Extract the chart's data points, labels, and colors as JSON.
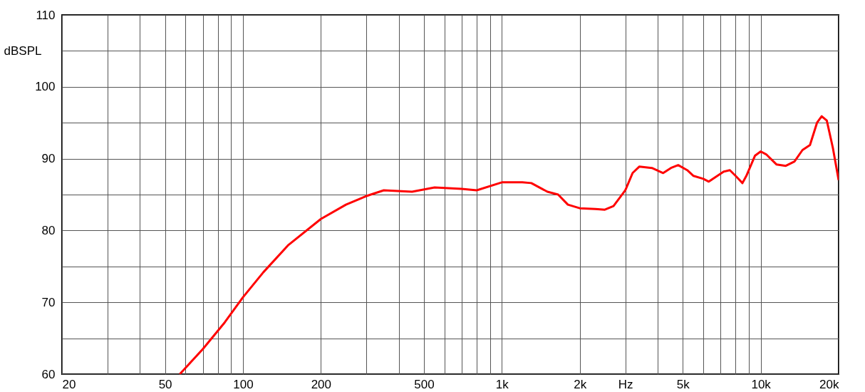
{
  "chart_data": {
    "type": "line",
    "ylabel": "dBSPL",
    "log": "x",
    "grid": true,
    "line_style": "solid",
    "xlim": [
      20,
      20000
    ],
    "ylim": [
      60,
      110
    ],
    "xticks": [
      20,
      {
        "value": 30,
        "label": null
      },
      {
        "value": 40,
        "label": null
      },
      50,
      {
        "value": 60,
        "label": null
      },
      {
        "value": 70,
        "label": null
      },
      {
        "value": 80,
        "label": null
      },
      {
        "value": 90,
        "label": null
      },
      100,
      200,
      {
        "value": 300,
        "label": null
      },
      {
        "value": 400,
        "label": null
      },
      500,
      {
        "value": 600,
        "label": null
      },
      {
        "value": 700,
        "label": null
      },
      {
        "value": 800,
        "label": null
      },
      {
        "value": 900,
        "label": null
      },
      {
        "value": 1000,
        "label": "1k"
      },
      {
        "value": 2000,
        "label": "2k"
      },
      {
        "value": 3000,
        "label": "Hz"
      },
      {
        "value": 4000,
        "label": null
      },
      {
        "value": 5000,
        "label": "5k"
      },
      {
        "value": 6000,
        "label": null
      },
      {
        "value": 7000,
        "label": null
      },
      {
        "value": 8000,
        "label": null
      },
      {
        "value": 9000,
        "label": null
      },
      {
        "value": 10000,
        "label": "10k"
      },
      {
        "value": 20000,
        "label": "20k"
      }
    ],
    "yticks": [
      60,
      {
        "value": 65,
        "label": null
      },
      70,
      {
        "value": 75,
        "label": null
      },
      80,
      {
        "value": 85,
        "label": null
      },
      90,
      {
        "value": 95,
        "label": null
      },
      100,
      {
        "value": 105,
        "label": null
      },
      110
    ],
    "x": [
      57,
      70,
      85,
      100,
      120,
      150,
      200,
      250,
      300,
      350,
      450,
      550,
      700,
      800,
      1000,
      1200,
      1300,
      1500,
      1650,
      1800,
      2000,
      2300,
      2500,
      2700,
      3000,
      3200,
      3400,
      3800,
      4200,
      4500,
      4800,
      5200,
      5500,
      6000,
      6300,
      6800,
      7200,
      7600,
      8000,
      8500,
      8800,
      9500,
      10000,
      10500,
      11500,
      12500,
      13500,
      14500,
      15500,
      16500,
      17200,
      18000,
      19000,
      20000
    ],
    "series": [
      {
        "color": "#ff0000",
        "values": [
          60,
          63.5,
          67.2,
          70.7,
          74.2,
          78,
          81.6,
          83.6,
          84.8,
          85.6,
          85.4,
          86.0,
          85.8,
          85.6,
          86.7,
          86.7,
          86.6,
          85.4,
          85.0,
          83.6,
          83.1,
          83.0,
          82.9,
          83.4,
          85.6,
          88.0,
          88.9,
          88.7,
          88.0,
          88.7,
          89.1,
          88.4,
          87.6,
          87.2,
          86.8,
          87.6,
          88.2,
          88.4,
          87.6,
          86.6,
          87.6,
          90.4,
          91.0,
          90.6,
          89.2,
          89.0,
          89.6,
          91.2,
          91.9,
          95.0,
          95.9,
          95.3,
          91.5,
          87.0
        ]
      }
    ]
  }
}
